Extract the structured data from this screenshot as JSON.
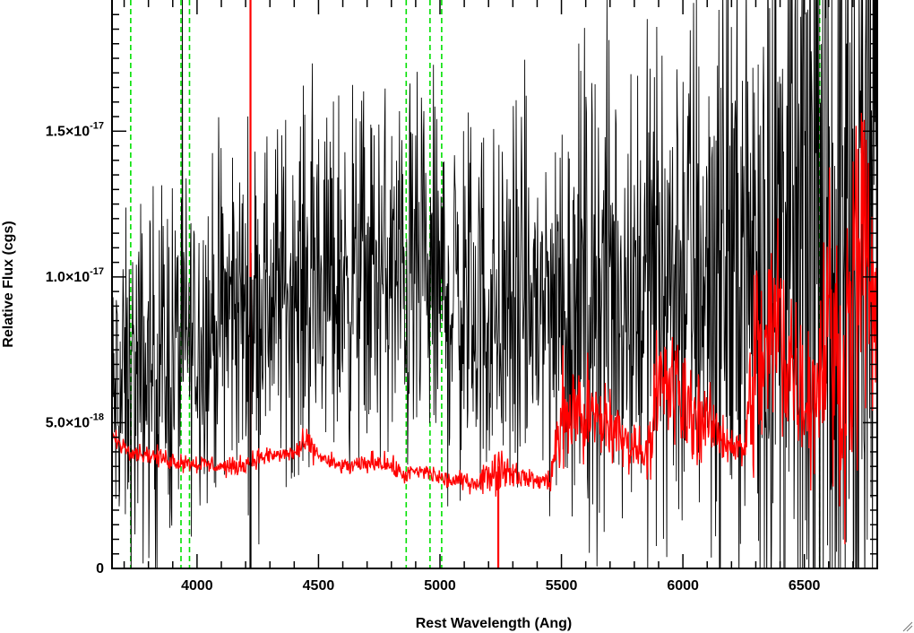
{
  "chart_data": {
    "type": "line",
    "title": "",
    "xlabel": "Rest Wavelength (Ang)",
    "ylabel": "Relative Flux (cgs)",
    "xlim": [
      3650,
      6800
    ],
    "ylim": [
      0,
      1.95e-17
    ],
    "grid": false,
    "x_ticks": [
      4000,
      4500,
      5000,
      5500,
      6000,
      6500
    ],
    "x_tick_labels": [
      "4000",
      "4500",
      "5000",
      "5500",
      "6000",
      "6500"
    ],
    "y_ticks": [
      0,
      5e-18,
      1e-17,
      1.5e-17
    ],
    "y_tick_labels": [
      {
        "mantissa": "0",
        "exponent": ""
      },
      {
        "mantissa": "5.0×10",
        "exponent": "-18"
      },
      {
        "mantissa": "1.0×10",
        "exponent": "-17"
      },
      {
        "mantissa": "1.5×10",
        "exponent": "-17"
      }
    ],
    "vertical_lines": {
      "color": "#00e000",
      "style": "dashed",
      "x": [
        3727,
        3934,
        3969,
        4861,
        4959,
        5007,
        6563
      ]
    },
    "series": [
      {
        "color": "#000000",
        "style": "noisy-spectrum",
        "x": [
          3650,
          3700,
          3750,
          3800,
          3850,
          3900,
          3950,
          4000,
          4050,
          4100,
          4150,
          4200,
          4250,
          4300,
          4350,
          4400,
          4450,
          4500,
          4550,
          4600,
          4650,
          4700,
          4750,
          4800,
          4850,
          4900,
          4950,
          5000,
          5050,
          5100,
          5150,
          5200,
          5250,
          5300,
          5350,
          5400,
          5450,
          5500,
          5550,
          5600,
          5650,
          5700,
          5750,
          5800,
          5850,
          5900,
          5950,
          6000,
          6050,
          6100,
          6150,
          6200,
          6250,
          6300,
          6350,
          6400,
          6450,
          6500,
          6550,
          6600,
          6650,
          6700,
          6750,
          6800
        ],
        "mean": [
          5.5e-18,
          6e-18,
          6.3e-18,
          6.6e-18,
          7e-18,
          7.3e-18,
          7.6e-18,
          8e-18,
          8.3e-18,
          8.6e-18,
          8.8e-18,
          9e-18,
          9.2e-18,
          9.4e-18,
          9.5e-18,
          9.6e-18,
          9.7e-18,
          9.8e-18,
          9.9e-18,
          1e-17,
          1e-17,
          1.01e-17,
          1e-17,
          9.9e-18,
          9.8e-18,
          9.7e-18,
          9.6e-18,
          9.5e-18,
          9.3e-18,
          9.2e-18,
          9e-18,
          8.9e-18,
          8.8e-18,
          8.8e-18,
          8.9e-18,
          9e-18,
          9.1e-18,
          9.2e-18,
          9.3e-18,
          9.4e-18,
          9.5e-18,
          9.6e-18,
          9.7e-18,
          9.8e-18,
          9.9e-18,
          1e-17,
          1.01e-17,
          1.02e-17,
          1.03e-17,
          1.04e-17,
          1.05e-17,
          1.06e-17,
          1.07e-17,
          1.08e-17,
          1.09e-17,
          1.1e-17,
          1.11e-17,
          1.12e-17,
          1.14e-17,
          1.16e-17,
          1.18e-17,
          1.2e-17,
          1.22e-17,
          1.24e-17
        ],
        "noise": [
          3e-18,
          3.5e-18,
          3.8e-18,
          3.8e-18,
          3.8e-18,
          3.8e-18,
          3.6e-18,
          3.4e-18,
          3.4e-18,
          3.5e-18,
          3.5e-18,
          3.5e-18,
          3.5e-18,
          3.6e-18,
          3.7e-18,
          3.7e-18,
          3.7e-18,
          3.8e-18,
          3.8e-18,
          3.8e-18,
          3.8e-18,
          3.8e-18,
          3.9e-18,
          3.9e-18,
          4e-18,
          4e-18,
          4e-18,
          4e-18,
          4e-18,
          4e-18,
          4e-18,
          4e-18,
          4e-18,
          4.1e-18,
          4.1e-18,
          4.2e-18,
          4.4e-18,
          4.6e-18,
          4.8e-18,
          5e-18,
          5e-18,
          5e-18,
          5e-18,
          5e-18,
          5.2e-18,
          5.5e-18,
          5.8e-18,
          6e-18,
          6e-18,
          6.2e-18,
          6.4e-18,
          6.5e-18,
          7e-18,
          8e-18,
          8.5e-18,
          9e-18,
          9.5e-18,
          1e-17,
          1.05e-17,
          1.1e-17,
          1.2e-17,
          1.3e-17,
          1.3e-17,
          1.3e-17
        ]
      },
      {
        "color": "#ff0000",
        "style": "error-spectrum",
        "x": [
          3650,
          3700,
          3750,
          3800,
          3850,
          3900,
          3950,
          4000,
          4050,
          4100,
          4150,
          4200,
          4250,
          4300,
          4350,
          4400,
          4450,
          4500,
          4550,
          4600,
          4650,
          4700,
          4750,
          4800,
          4850,
          4900,
          4950,
          5000,
          5050,
          5100,
          5150,
          5200,
          5250,
          5300,
          5350,
          5400,
          5450,
          5500,
          5550,
          5600,
          5650,
          5700,
          5750,
          5800,
          5850,
          5900,
          5950,
          6000,
          6050,
          6100,
          6150,
          6200,
          6250,
          6300,
          6350,
          6400,
          6450,
          6500,
          6550,
          6600,
          6650,
          6700,
          6750,
          6800
        ],
        "mean": [
          4.5e-18,
          4.2e-18,
          4e-18,
          3.9e-18,
          3.8e-18,
          3.7e-18,
          3.65e-18,
          3.6e-18,
          3.55e-18,
          3.5e-18,
          3.45e-18,
          3.6e-18,
          3.8e-18,
          3.85e-18,
          3.9e-18,
          3.95e-18,
          4.3e-18,
          3.9e-18,
          3.6e-18,
          3.5e-18,
          3.5e-18,
          3.6e-18,
          3.7e-18,
          3.5e-18,
          3.2e-18,
          3.3e-18,
          3.3e-18,
          3.1e-18,
          3e-18,
          3e-18,
          2.95e-18,
          3.2e-18,
          3.5e-18,
          3.3e-18,
          3.1e-18,
          3e-18,
          3e-18,
          5e-18,
          5.5e-18,
          5.2e-18,
          5e-18,
          5e-18,
          4.4e-18,
          4.2e-18,
          4e-18,
          6e-18,
          6.3e-18,
          5.6e-18,
          5.3e-18,
          5e-18,
          4.6e-18,
          4.3e-18,
          4e-18,
          7e-18,
          7.5e-18,
          8.5e-18,
          7e-18,
          6e-18,
          6.2e-18,
          9e-18,
          6e-18,
          9.5e-18,
          1.1e-17,
          8e-18
        ],
        "noise": [
          2e-19,
          2e-19,
          2e-19,
          2e-19,
          2e-19,
          2e-19,
          2e-19,
          2e-19,
          2e-19,
          2e-19,
          2e-19,
          2e-19,
          2e-19,
          2e-19,
          2e-19,
          2e-19,
          3e-19,
          2e-19,
          2e-19,
          2e-19,
          2e-19,
          2e-19,
          2.5e-19,
          2e-19,
          2e-19,
          2e-19,
          2e-19,
          2e-19,
          2e-19,
          2e-19,
          2e-19,
          4e-19,
          5e-19,
          3e-19,
          2e-19,
          2e-19,
          2.5e-19,
          1.2e-18,
          1.3e-18,
          1.2e-18,
          1e-18,
          1e-18,
          6e-19,
          5e-19,
          5e-19,
          1.6e-18,
          1.5e-18,
          1.2e-18,
          1e-18,
          8e-19,
          6e-19,
          4e-19,
          4e-19,
          2.5e-18,
          2.8e-18,
          3e-18,
          2e-18,
          1.5e-18,
          2e-18,
          3e-18,
          2.5e-18,
          3.5e-18,
          4e-18,
          3e-18
        ]
      }
    ],
    "spikes": [
      {
        "x": 4220,
        "color": "#ff0000",
        "y_low": 3.5e-18,
        "y_high": 1.95e-17
      },
      {
        "x": 5240,
        "color": "#ff0000",
        "y_low": 0,
        "y_high": 3.5e-18
      },
      {
        "x": 4220,
        "color": "#000000",
        "y_low": 0,
        "y_high": 1e-17
      }
    ]
  }
}
